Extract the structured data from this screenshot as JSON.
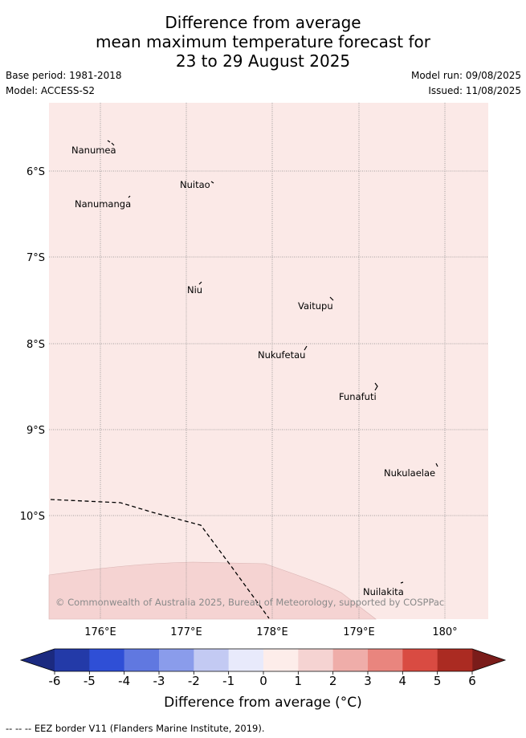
{
  "title": {
    "line1": "Difference from average",
    "line2": "mean maximum temperature forecast for",
    "line3": "23 to 29 August 2025"
  },
  "meta": {
    "base_period": "Base period: 1981-2018",
    "model": "Model: ACCESS-S2",
    "model_run": "Model run: 09/08/2025",
    "issued": "Issued: 11/08/2025"
  },
  "map": {
    "lat_labels": [
      "6°S",
      "7°S",
      "8°S",
      "9°S",
      "10°S"
    ],
    "lon_labels": [
      "176°E",
      "177°E",
      "178°E",
      "179°E",
      "180°"
    ],
    "places": [
      {
        "name": "Nanumea"
      },
      {
        "name": "Nuitao"
      },
      {
        "name": "Nanumanga"
      },
      {
        "name": "Niu"
      },
      {
        "name": "Vaitupu"
      },
      {
        "name": "Nukufetau"
      },
      {
        "name": "Funafuti"
      },
      {
        "name": "Nukulaelae"
      },
      {
        "name": "Nuilakita"
      }
    ],
    "copyright": "© Commonwealth of Australia 2025, Bureau of Meteorology, supported by COSPPac",
    "colors": {
      "anomaly_0_1": "#fbe9e7",
      "anomaly_1_2": "#f5d3d2"
    }
  },
  "colorbar": {
    "ticks": [
      "-6",
      "-5",
      "-4",
      "-3",
      "-2",
      "-1",
      "0",
      "1",
      "2",
      "3",
      "4",
      "5",
      "6"
    ],
    "colors": [
      "#233aa8",
      "#2f4fd6",
      "#6078e0",
      "#8a9ceb",
      "#c3caf3",
      "#e8eafb",
      "#fdedea",
      "#f5d3d2",
      "#efada9",
      "#e9857e",
      "#d94b42",
      "#ab2b22"
    ],
    "low_extend_color": "#1b2a80",
    "high_extend_color": "#7a1c1a",
    "label": "Difference from average (°C)"
  },
  "footer": "--  --  -- EEZ border V11 (Flanders Marine Institute, 2019)."
}
